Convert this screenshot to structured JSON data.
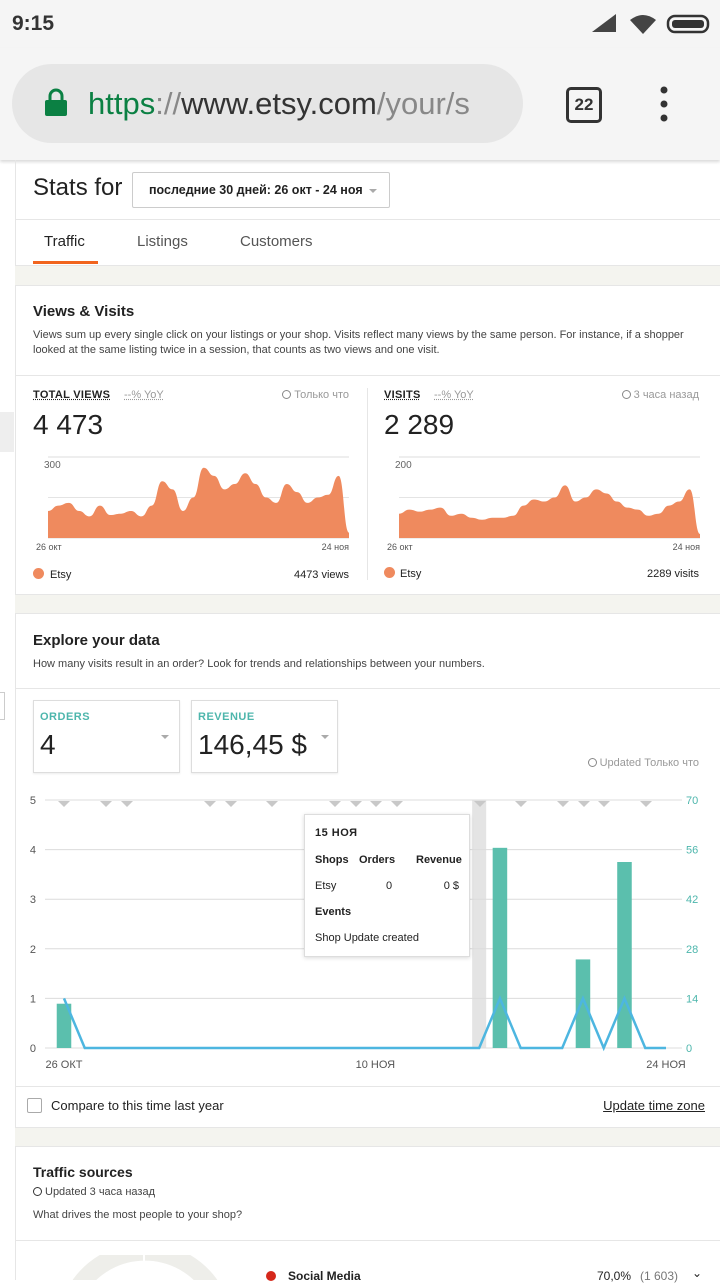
{
  "status_bar": {
    "time": "9:15"
  },
  "browser": {
    "scheme": "https",
    "separator": "://",
    "host": "www.etsy.com",
    "path": "/your/s",
    "tab_count": "22"
  },
  "header": {
    "title": "Stats for",
    "range": "последние 30 дней: 26 окт - 24 ноя"
  },
  "tabs": [
    "Traffic",
    "Listings",
    "Customers"
  ],
  "views_visits": {
    "title": "Views & Visits",
    "description": "Views sum up every single click on your listings or your shop. Visits reflect many views by the same person. For instance, if a shopper looked at the same listing twice in a session, that counts as two views and one visit.",
    "panels": [
      {
        "label": "TOTAL VIEWS",
        "yoy": "--% YoY",
        "updated": "Только что",
        "total": "4 473",
        "chart": {
          "type": "area",
          "color": "#ef8a5e",
          "ylim": [
            0,
            300
          ],
          "yticks": [
            300
          ],
          "x_labels": [
            "26 окт",
            "24 ноя"
          ],
          "values": [
            100,
            120,
            130,
            100,
            80,
            120,
            85,
            90,
            100,
            80,
            120,
            210,
            180,
            100,
            150,
            260,
            230,
            180,
            200,
            240,
            200,
            150,
            130,
            200,
            170,
            130,
            150,
            160,
            230,
            20
          ]
        },
        "legend": "Etsy",
        "legend_total": "4473 views"
      },
      {
        "label": "VISITS",
        "yoy": "--% YoY",
        "updated": "3 часа назад",
        "total": "2 289",
        "chart": {
          "type": "area",
          "color": "#ef8a5e",
          "ylim": [
            0,
            200
          ],
          "yticks": [
            200
          ],
          "x_labels": [
            "26 окт",
            "24 ноя"
          ],
          "values": [
            60,
            70,
            65,
            70,
            75,
            55,
            60,
            50,
            45,
            50,
            50,
            55,
            80,
            95,
            90,
            100,
            130,
            90,
            100,
            120,
            110,
            90,
            75,
            70,
            55,
            60,
            80,
            90,
            120,
            10
          ]
        },
        "legend": "Etsy",
        "legend_total": "2289 visits"
      }
    ]
  },
  "explore": {
    "title": "Explore your data",
    "description": "How many visits result in an order? Look for trends and relationships between your numbers.",
    "cards": [
      {
        "label": "ORDERS",
        "value": "4"
      },
      {
        "label": "REVENUE",
        "value": "146,45 $"
      }
    ],
    "updated_prefix": "Updated",
    "updated": "Только что",
    "chart_data": {
      "type": "bar",
      "categories": [
        "26 ОКТ",
        null,
        null,
        null,
        null,
        null,
        null,
        null,
        null,
        null,
        null,
        null,
        null,
        null,
        null,
        "10 НОЯ",
        null,
        null,
        null,
        null,
        null,
        null,
        null,
        null,
        null,
        null,
        null,
        null,
        null,
        "24 НОЯ"
      ],
      "ylim": [
        0,
        5
      ],
      "yticks": [
        0,
        1,
        2,
        3,
        4,
        5
      ],
      "y2lim": [
        0,
        70
      ],
      "y2ticks": [
        0,
        14,
        28,
        42,
        56,
        70
      ],
      "grid": true,
      "selected_index": 20,
      "series": [
        {
          "type": "bar",
          "axis": "y2",
          "color": "#5bbfad",
          "values": [
            12.5,
            0,
            0,
            0,
            0,
            0,
            0,
            0,
            0,
            0,
            0,
            0,
            0,
            0,
            0,
            0,
            0,
            0,
            0,
            0,
            0,
            56.5,
            0,
            0,
            0,
            25,
            0,
            52.5,
            0,
            0
          ]
        },
        {
          "type": "line",
          "color": "#4db6e0",
          "values": [
            1,
            0,
            0,
            0,
            0,
            0,
            0,
            0,
            0,
            0,
            0,
            0,
            0,
            0,
            0,
            0,
            0,
            0,
            0,
            0,
            0,
            1,
            0,
            0,
            0,
            1,
            0,
            1,
            0,
            0
          ]
        }
      ]
    },
    "tooltip": {
      "date": "15 НОЯ",
      "headers": [
        "Shops",
        "Orders",
        "Revenue"
      ],
      "row": [
        "Etsy",
        "0",
        "0 $"
      ],
      "events_title": "Events",
      "event": "Shop Update created"
    },
    "compare": "Compare to this time last year",
    "timezone": "Update time zone"
  },
  "traffic_sources": {
    "title": "Traffic sources",
    "updated": "Updated 3 часа назад",
    "description": "What drives the most people to your shop?",
    "first": {
      "name": "Social Media",
      "percent": "70,0%",
      "count": "(1 603)"
    }
  }
}
